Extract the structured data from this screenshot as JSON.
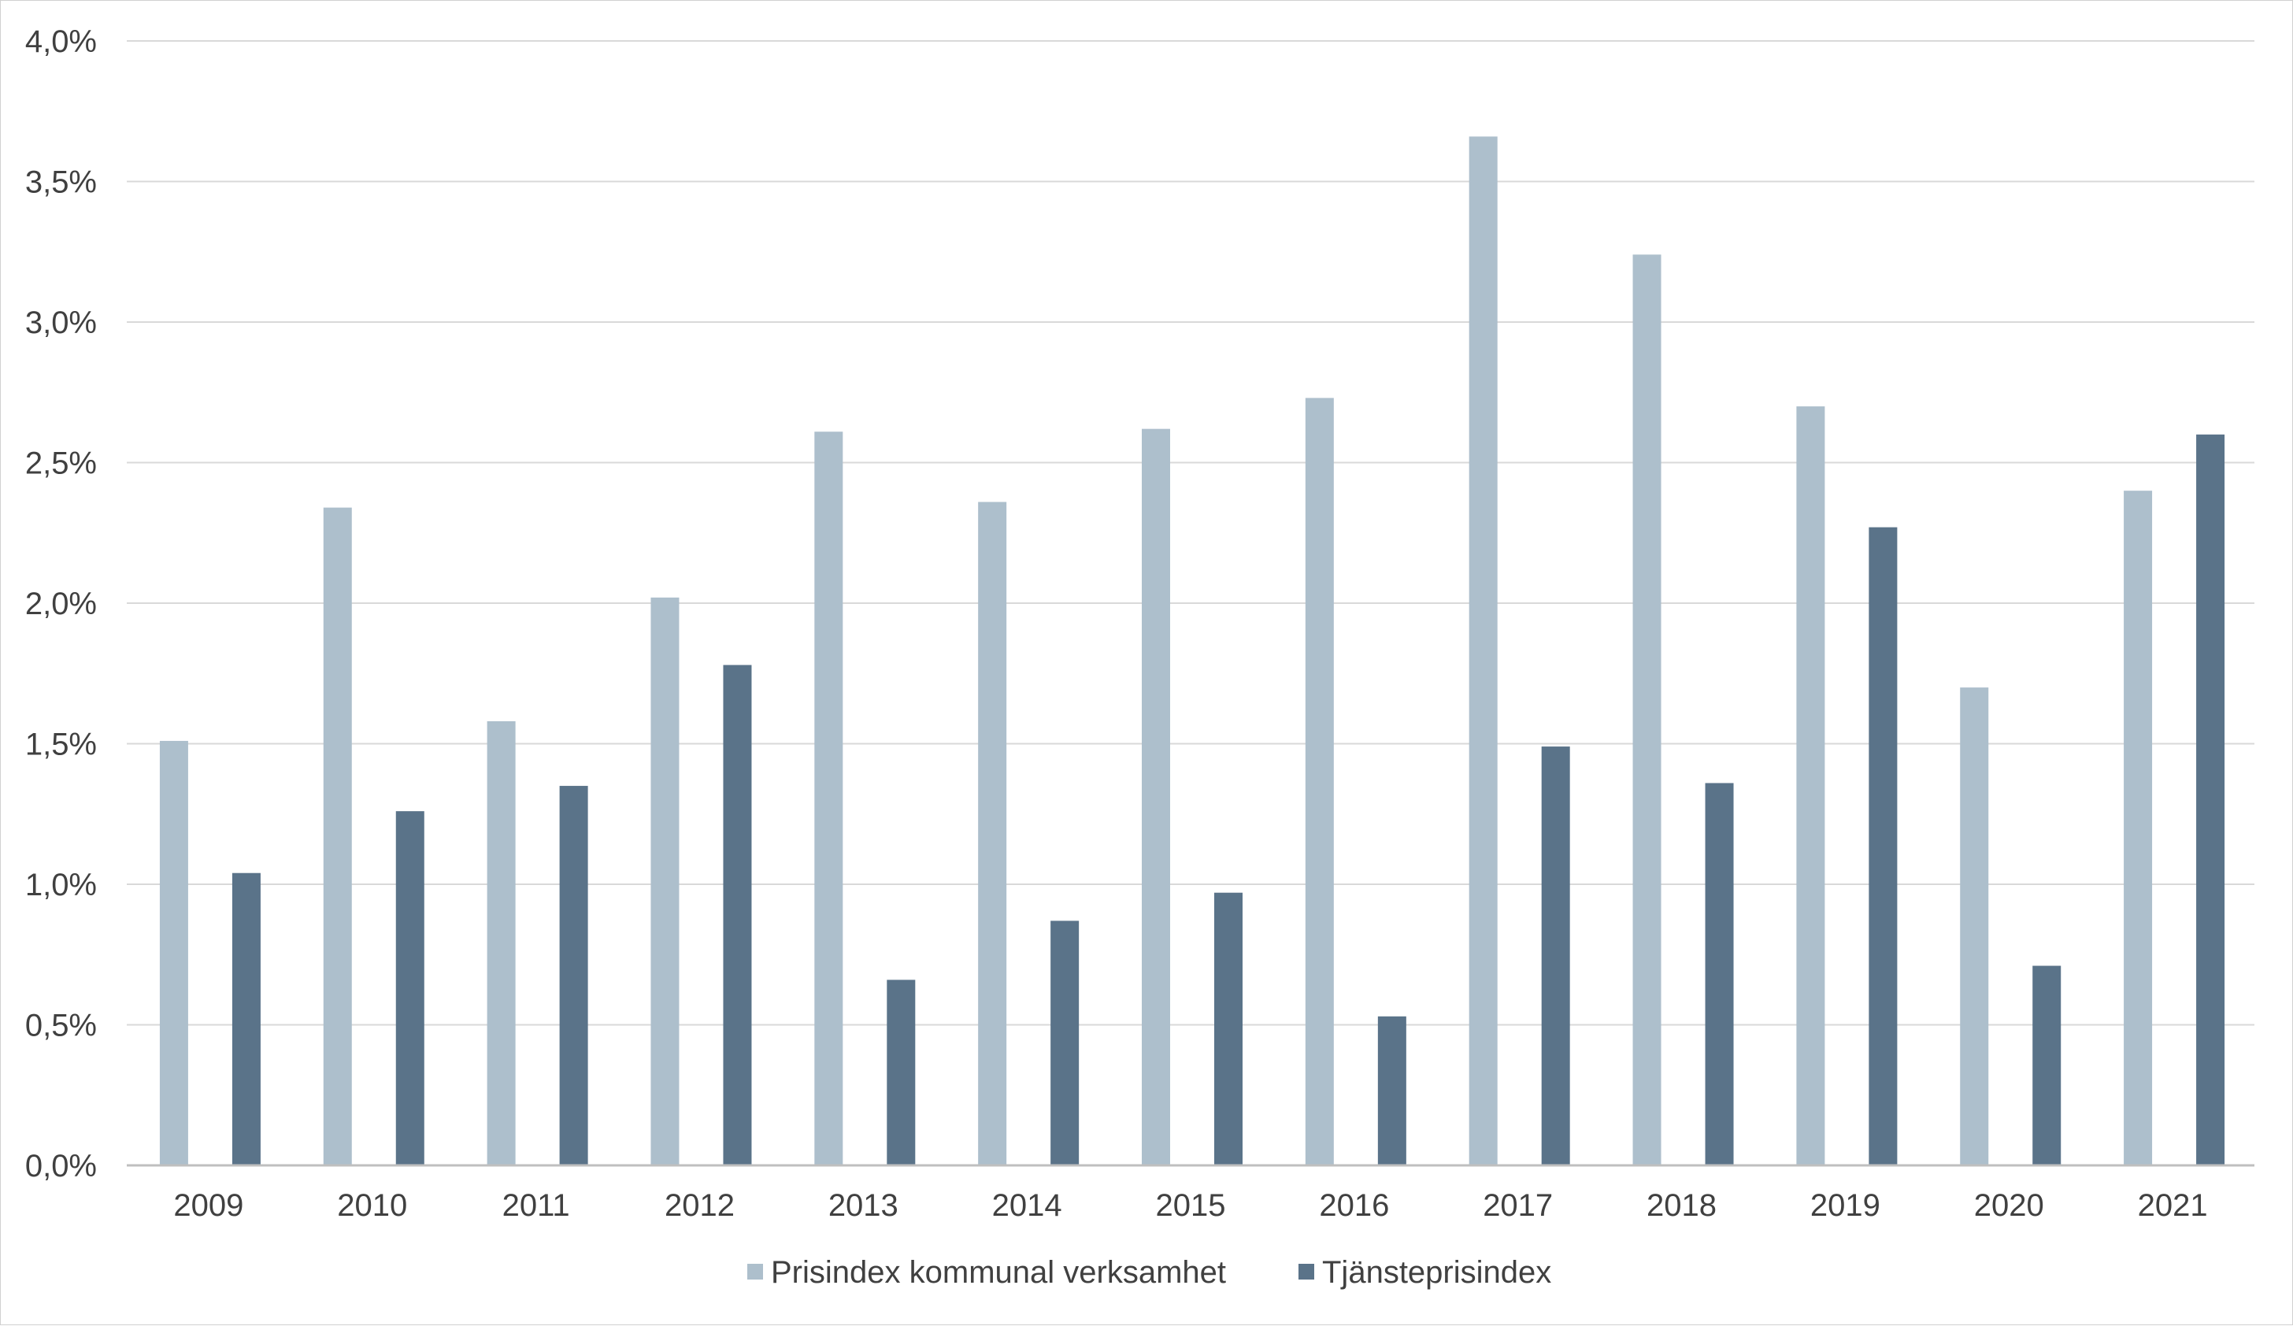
{
  "chart_data": {
    "type": "bar",
    "title": "",
    "xlabel": "",
    "ylabel": "",
    "ylim": [
      0,
      4.0
    ],
    "ytick_values": [
      0.0,
      0.5,
      1.0,
      1.5,
      2.0,
      2.5,
      3.0,
      3.5,
      4.0
    ],
    "ytick_labels": [
      "0,0%",
      "0,5%",
      "1,0%",
      "1,5%",
      "2,0%",
      "2,5%",
      "3,0%",
      "3,5%",
      "4,0%"
    ],
    "categories": [
      "2009",
      "2010",
      "2011",
      "2012",
      "2013",
      "2014",
      "2015",
      "2016",
      "2017",
      "2018",
      "2019",
      "2020",
      "2021"
    ],
    "series": [
      {
        "name": "Prisindex kommunal verksamhet",
        "color": "#adbfcc",
        "values": [
          1.51,
          2.34,
          1.58,
          2.02,
          2.61,
          2.36,
          2.62,
          2.73,
          3.66,
          3.24,
          2.7,
          1.7,
          2.4
        ]
      },
      {
        "name": "Tjänsteprisindex",
        "color": "#5a7389",
        "values": [
          1.04,
          1.26,
          1.35,
          1.78,
          0.66,
          0.87,
          0.97,
          0.53,
          1.49,
          1.36,
          2.27,
          0.71,
          2.6
        ]
      }
    ],
    "grid": "horizontal",
    "legend_position": "bottom-center"
  }
}
